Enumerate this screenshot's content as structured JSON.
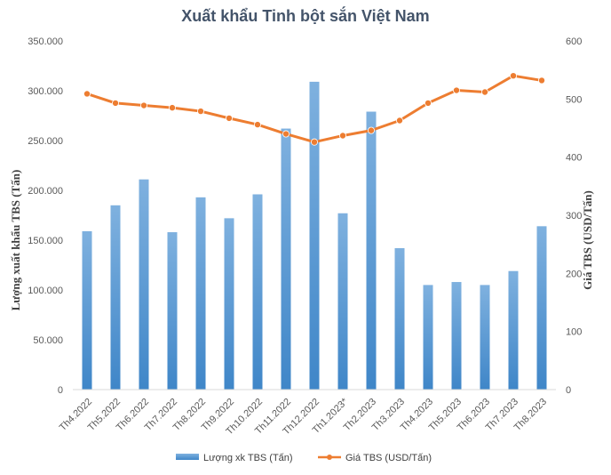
{
  "chart_data": {
    "type": "bar",
    "title": "Xuất khẩu Tinh bột sắn Việt Nam",
    "categories": [
      "Th4.2022",
      "Th5.2022",
      "Th6.2022",
      "Th7.2022",
      "Th8.2022",
      "Th9.2022",
      "Th10.2022",
      "Th11.2022",
      "Th12.2022",
      "Th1.2023*",
      "Th2.2023",
      "Th3.2023",
      "Th4.2023",
      "Th5.2023",
      "Th6.2023",
      "Th7.2023",
      "Th8.2023"
    ],
    "series": [
      {
        "name": "Lượng xk TBS (Tấn)",
        "type": "bar",
        "axis": "left",
        "color": "#5b9bd5",
        "values": [
          159000,
          185000,
          211000,
          158000,
          193000,
          172000,
          196000,
          262000,
          309000,
          177000,
          279000,
          142000,
          105000,
          108000,
          105000,
          119000,
          164000
        ]
      },
      {
        "name": "Giá TBS (USD/Tấn)",
        "type": "line",
        "axis": "right",
        "color": "#ed7d31",
        "values": [
          509,
          493,
          489,
          485,
          479,
          467,
          456,
          440,
          426,
          437,
          446,
          463,
          493,
          515,
          512,
          540,
          532
        ]
      }
    ],
    "ylabel_left": "Lượng xuất khẩu TBS (Tấn)",
    "ylabel_right": "Giá TBS (USD/Tấn)",
    "ylim_left": [
      0,
      350000
    ],
    "ylim_right": [
      0,
      600
    ],
    "yticks_left": [
      "0",
      "50.000",
      "100.000",
      "150.000",
      "200.000",
      "250.000",
      "300.000",
      "350.000"
    ],
    "yticks_right": [
      "0",
      "100",
      "200",
      "300",
      "400",
      "500",
      "600"
    ],
    "grid": false,
    "legend_position": "bottom"
  }
}
